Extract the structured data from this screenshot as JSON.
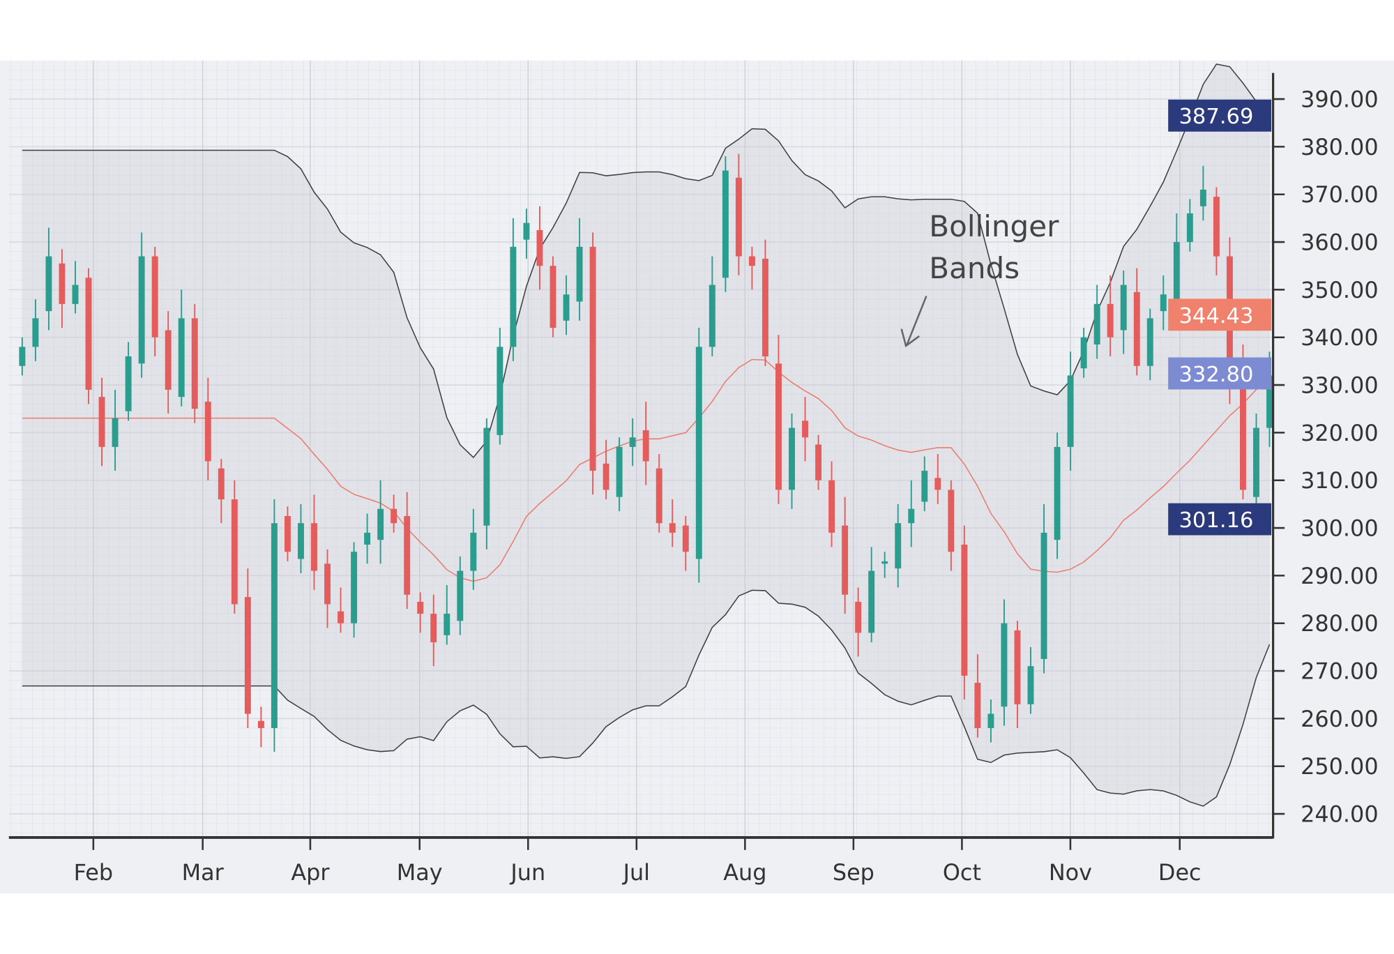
{
  "chart_data": {
    "type": "candlestick",
    "title": "",
    "indicator": "Bollinger Bands",
    "annotation": [
      "Bollinger",
      "Bands"
    ],
    "x_ticks": [
      "Feb",
      "Mar",
      "Apr",
      "May",
      "Jun",
      "Jul",
      "Aug",
      "Sep",
      "Oct",
      "Nov",
      "Dec"
    ],
    "y_ticks": [
      "390.00",
      "380.00",
      "370.00",
      "360.00",
      "350.00",
      "340.00",
      "330.00",
      "320.00",
      "310.00",
      "300.00",
      "290.00",
      "280.00",
      "270.00",
      "260.00",
      "250.00",
      "240.00"
    ],
    "ylim": [
      234,
      398
    ],
    "y_axis_position": "right",
    "grid": true,
    "close": [
      338,
      344,
      357,
      347,
      351,
      329,
      317,
      323,
      336,
      357,
      340,
      329,
      344,
      325,
      314,
      306,
      284,
      261,
      258,
      301,
      295,
      301,
      291,
      284,
      280,
      295,
      299,
      304,
      301,
      286,
      282,
      276,
      282,
      291,
      299,
      321,
      338,
      359,
      364,
      355,
      342,
      349,
      359,
      312,
      308,
      317,
      319,
      314,
      301,
      299,
      295,
      338,
      351,
      375,
      357,
      355,
      336,
      308,
      321,
      319,
      310,
      299,
      286,
      278,
      291,
      293,
      301,
      304,
      312,
      308,
      295,
      269,
      258,
      261,
      280,
      263,
      271,
      299,
      317,
      332,
      340,
      347,
      340,
      351,
      334,
      344,
      349,
      360,
      366,
      371,
      357,
      331,
      308,
      321,
      332
    ],
    "price_labels": {
      "upper_band": "387.69",
      "middle_band": "344.43",
      "last_price": "332.80",
      "lower_band": "301.16"
    },
    "colors": {
      "up": "#2a9d8f",
      "down": "#e35d5d",
      "middle_band": "#ec7b6c",
      "band_line": "#3d3d3d",
      "band_fill": "#c9ccd3",
      "upper_label": "#2b3a7c",
      "middle_label": "#f0826d",
      "last_label": "#7d8bd2",
      "lower_label": "#2b3a7c",
      "background": "#eef0f4",
      "grid": "#d9dce3"
    }
  }
}
